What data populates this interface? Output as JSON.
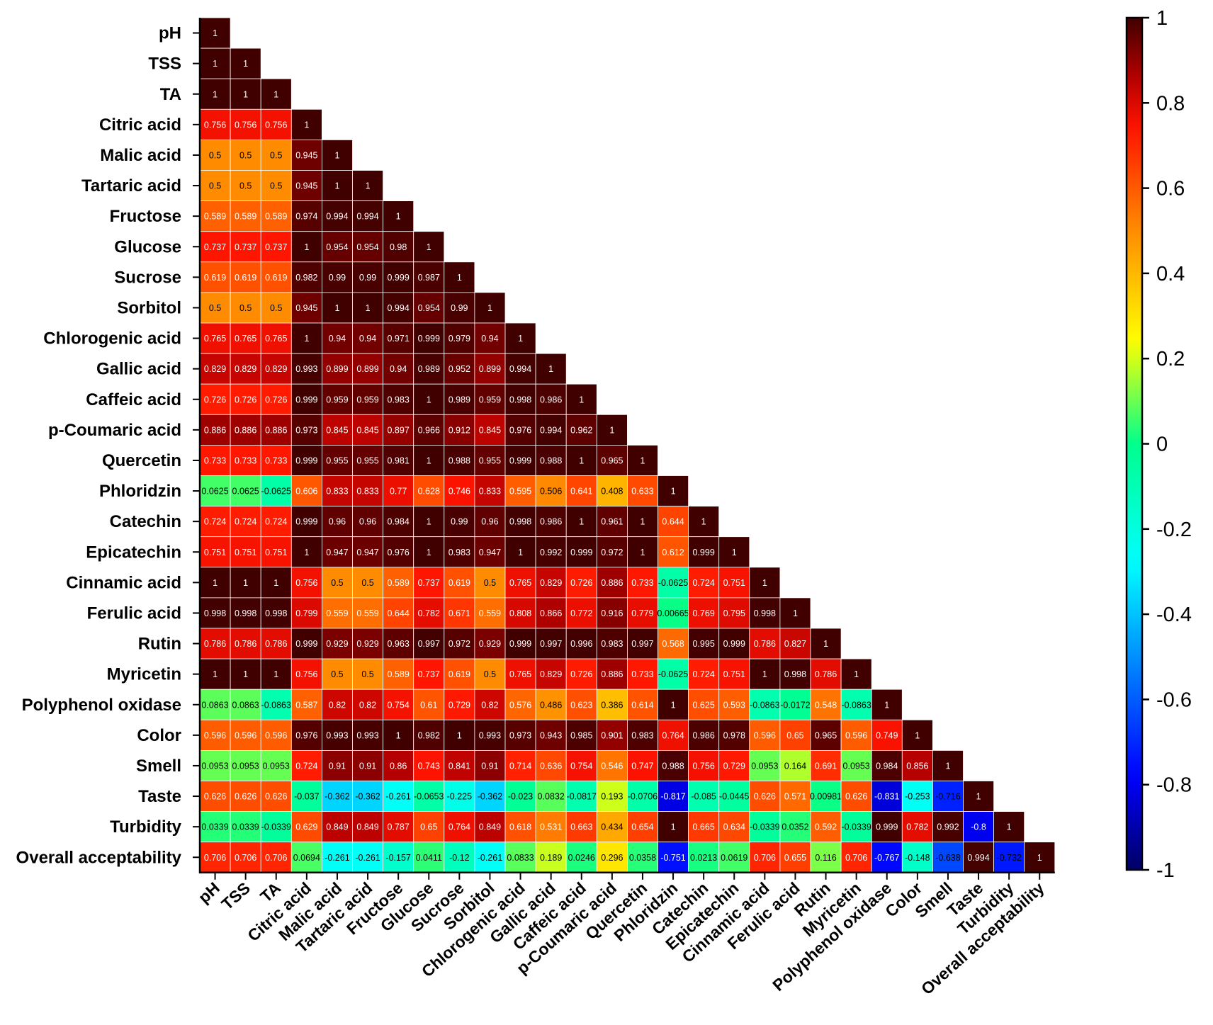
{
  "chart_data": {
    "type": "heatmap",
    "title": "",
    "variables": [
      "pH",
      "TSS",
      "TA",
      "Citric acid",
      "Malic acid",
      "Tartaric acid",
      "Fructose",
      "Glucose",
      "Sucrose",
      "Sorbitol",
      "Chlorogenic acid",
      "Gallic acid",
      "Caffeic acid",
      "p-Coumaric acid",
      "Quercetin",
      "Phloridzin",
      "Catechin",
      "Epicatechin",
      "Cinnamic acid",
      "Ferulic acid",
      "Rutin",
      "Myricetin",
      "Polyphenol oxidase",
      "Color",
      "Smell",
      "Taste",
      "Turbidity",
      "Overall acceptability"
    ],
    "matrix": [
      [
        "1"
      ],
      [
        "1",
        "1"
      ],
      [
        "1",
        "1",
        "1"
      ],
      [
        "0.756",
        "0.756",
        "0.756",
        "1"
      ],
      [
        "0.5",
        "0.5",
        "0.5",
        "0.945",
        "1"
      ],
      [
        "0.5",
        "0.5",
        "0.5",
        "0.945",
        "1",
        "1"
      ],
      [
        "0.589",
        "0.589",
        "0.589",
        "0.974",
        "0.994",
        "0.994",
        "1"
      ],
      [
        "0.737",
        "0.737",
        "0.737",
        "1",
        "0.954",
        "0.954",
        "0.98",
        "1"
      ],
      [
        "0.619",
        "0.619",
        "0.619",
        "0.982",
        "0.99",
        "0.99",
        "0.999",
        "0.987",
        "1"
      ],
      [
        "0.5",
        "0.5",
        "0.5",
        "0.945",
        "1",
        "1",
        "0.994",
        "0.954",
        "0.99",
        "1"
      ],
      [
        "0.765",
        "0.765",
        "0.765",
        "1",
        "0.94",
        "0.94",
        "0.971",
        "0.999",
        "0.979",
        "0.94",
        "1"
      ],
      [
        "0.829",
        "0.829",
        "0.829",
        "0.993",
        "0.899",
        "0.899",
        "0.94",
        "0.989",
        "0.952",
        "0.899",
        "0.994",
        "1"
      ],
      [
        "0.726",
        "0.726",
        "0.726",
        "0.999",
        "0.959",
        "0.959",
        "0.983",
        "1",
        "0.989",
        "0.959",
        "0.998",
        "0.986",
        "1"
      ],
      [
        "0.886",
        "0.886",
        "0.886",
        "0.973",
        "0.845",
        "0.845",
        "0.897",
        "0.966",
        "0.912",
        "0.845",
        "0.976",
        "0.994",
        "0.962",
        "1"
      ],
      [
        "0.733",
        "0.733",
        "0.733",
        "0.999",
        "0.955",
        "0.955",
        "0.981",
        "1",
        "0.988",
        "0.955",
        "0.999",
        "0.988",
        "1",
        "0.965",
        "1"
      ],
      [
        "0.0625",
        "0.0625",
        "-0.0625",
        "0.606",
        "0.833",
        "0.833",
        "0.77",
        "0.628",
        "0.746",
        "0.833",
        "0.595",
        "0.506",
        "0.641",
        "0.408",
        "0.633",
        "1"
      ],
      [
        "0.724",
        "0.724",
        "0.724",
        "0.999",
        "0.96",
        "0.96",
        "0.984",
        "1",
        "0.99",
        "0.96",
        "0.998",
        "0.986",
        "1",
        "0.961",
        "1",
        "0.644",
        "1"
      ],
      [
        "0.751",
        "0.751",
        "0.751",
        "1",
        "0.947",
        "0.947",
        "0.976",
        "1",
        "0.983",
        "0.947",
        "1",
        "0.992",
        "0.999",
        "0.972",
        "1",
        "0.612",
        "0.999",
        "1"
      ],
      [
        "1",
        "1",
        "1",
        "0.756",
        "0.5",
        "0.5",
        "0.589",
        "0.737",
        "0.619",
        "0.5",
        "0.765",
        "0.829",
        "0.726",
        "0.886",
        "0.733",
        "-0.0625",
        "0.724",
        "0.751",
        "1"
      ],
      [
        "0.998",
        "0.998",
        "0.998",
        "0.799",
        "0.559",
        "0.559",
        "0.644",
        "0.782",
        "0.671",
        "0.559",
        "0.808",
        "0.866",
        "0.772",
        "0.916",
        "0.779",
        "0.00665",
        "0.769",
        "0.795",
        "0.998",
        "1"
      ],
      [
        "0.786",
        "0.786",
        "0.786",
        "0.999",
        "0.929",
        "0.929",
        "0.963",
        "0.997",
        "0.972",
        "0.929",
        "0.999",
        "0.997",
        "0.996",
        "0.983",
        "0.997",
        "0.568",
        "0.995",
        "0.999",
        "0.786",
        "0.827",
        "1"
      ],
      [
        "1",
        "1",
        "1",
        "0.756",
        "0.5",
        "0.5",
        "0.589",
        "0.737",
        "0.619",
        "0.5",
        "0.765",
        "0.829",
        "0.726",
        "0.886",
        "0.733",
        "-0.0625",
        "0.724",
        "0.751",
        "1",
        "0.998",
        "0.786",
        "1"
      ],
      [
        "0.0863",
        "0.0863",
        "-0.0863",
        "0.587",
        "0.82",
        "0.82",
        "0.754",
        "0.61",
        "0.729",
        "0.82",
        "0.576",
        "0.486",
        "0.623",
        "0.386",
        "0.614",
        "1",
        "0.625",
        "0.593",
        "-0.0863",
        "-0.0172",
        "0.548",
        "-0.0863",
        "1"
      ],
      [
        "0.596",
        "0.596",
        "0.596",
        "0.976",
        "0.993",
        "0.993",
        "1",
        "0.982",
        "1",
        "0.993",
        "0.973",
        "0.943",
        "0.985",
        "0.901",
        "0.983",
        "0.764",
        "0.986",
        "0.978",
        "0.596",
        "0.65",
        "0.965",
        "0.596",
        "0.749",
        "1"
      ],
      [
        "0.0953",
        "0.0953",
        "0.0953",
        "0.724",
        "0.91",
        "0.91",
        "0.86",
        "0.743",
        "0.841",
        "0.91",
        "0.714",
        "0.636",
        "0.754",
        "0.546",
        "0.747",
        "0.988",
        "0.756",
        "0.729",
        "0.0953",
        "0.164",
        "0.691",
        "0.0953",
        "0.984",
        "0.856",
        "1"
      ],
      [
        "0.626",
        "0.626",
        "0.626",
        "-0.037",
        "-0.362",
        "-0.362",
        "-0.261",
        "-0.0653",
        "-0.225",
        "-0.362",
        "-0.023",
        "0.0832",
        "-0.0817",
        "0.193",
        "-0.0706",
        "-0.817",
        "-0.085",
        "-0.0445",
        "0.626",
        "0.571",
        "0.00981",
        "0.626",
        "-0.831",
        "-0.253",
        "-0.716",
        "1"
      ],
      [
        "0.0339",
        "0.0339",
        "-0.0339",
        "0.629",
        "0.849",
        "0.849",
        "0.787",
        "0.65",
        "0.764",
        "0.849",
        "0.618",
        "0.531",
        "0.663",
        "0.434",
        "0.654",
        "1",
        "0.665",
        "0.634",
        "-0.0339",
        "0.0352",
        "0.592",
        "-0.0339",
        "0.999",
        "0.782",
        "0.992",
        "-0.8",
        "1"
      ],
      [
        "0.706",
        "0.706",
        "0.706",
        "0.0694",
        "-0.261",
        "-0.261",
        "-0.157",
        "0.0411",
        "-0.12",
        "-0.261",
        "0.0833",
        "0.189",
        "0.0246",
        "0.296",
        "0.0358",
        "-0.751",
        "0.0213",
        "0.0619",
        "0.706",
        "0.655",
        "0.116",
        "0.706",
        "-0.767",
        "-0.148",
        "-0.638",
        "0.994",
        "-0.732",
        "1"
      ]
    ],
    "colorbar": {
      "range": [
        -1,
        1
      ],
      "ticks": [
        "1",
        "0.8",
        "0.6",
        "0.4",
        "0.2",
        "0",
        "-0.2",
        "-0.4",
        "-0.6",
        "-0.8",
        "-1"
      ],
      "colormap": "jet"
    }
  }
}
